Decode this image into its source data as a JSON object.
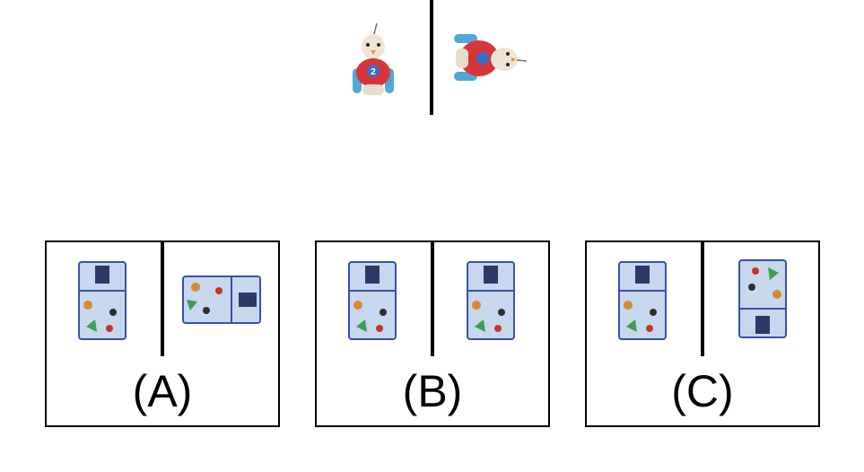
{
  "options": [
    {
      "label": "(A)",
      "second_orientation": "rotated-90"
    },
    {
      "label": "(B)",
      "second_orientation": "same"
    },
    {
      "label": "(C)",
      "second_orientation": "rotated-180"
    }
  ],
  "reference": {
    "left_object": "toy-car-icon",
    "right_object": "toy-car-rotated-icon",
    "car_number": "2"
  },
  "colors": {
    "car_body": "#d8343a",
    "car_wheels": "#4fa8d8",
    "bag_fill": "#c7d7ee",
    "bag_border": "#3a4fb0"
  }
}
